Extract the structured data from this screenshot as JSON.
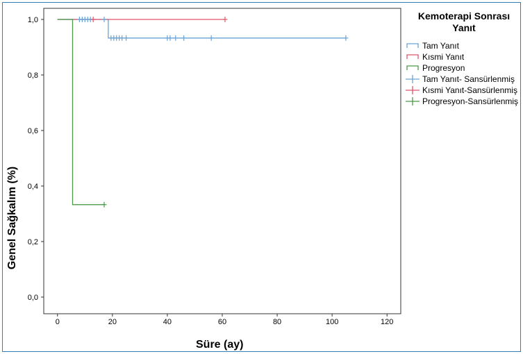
{
  "chart_data": {
    "type": "line",
    "subtype": "kaplan-meier",
    "xlabel": "Süre (ay)",
    "ylabel": "Genel Sağkalım (%)",
    "xlim": [
      -5,
      125
    ],
    "ylim": [
      0,
      1.0
    ],
    "xticks": [
      0,
      20,
      40,
      60,
      80,
      100,
      120
    ],
    "yticks": [
      0.0,
      0.2,
      0.4,
      0.6,
      0.8,
      1.0
    ],
    "xtick_labels": [
      "0",
      "20",
      "40",
      "60",
      "80",
      "100",
      "120"
    ],
    "ytick_labels": [
      "0,0",
      "0,2",
      "0,4",
      "0,6",
      "0,8",
      "1,0"
    ],
    "grid": false,
    "legend_position": "right",
    "legend_title": "Kemoterapi Sonrası Yanıt",
    "series": [
      {
        "name": "Tam Yanıt",
        "color": "#6aa3d5",
        "steps": [
          [
            0,
            1.0
          ],
          [
            18.5,
            1.0
          ],
          [
            18.5,
            0.933
          ],
          [
            105,
            0.933
          ]
        ],
        "censored": [
          [
            8,
            1.0
          ],
          [
            9,
            1.0
          ],
          [
            10,
            1.0
          ],
          [
            11,
            1.0
          ],
          [
            12,
            1.0
          ],
          [
            17,
            1.0
          ],
          [
            19.5,
            0.933
          ],
          [
            20.5,
            0.933
          ],
          [
            21.5,
            0.933
          ],
          [
            22.5,
            0.933
          ],
          [
            23.5,
            0.933
          ],
          [
            25,
            0.933
          ],
          [
            40,
            0.933
          ],
          [
            41,
            0.933
          ],
          [
            43,
            0.933
          ],
          [
            46,
            0.933
          ],
          [
            56,
            0.933
          ],
          [
            105,
            0.933
          ]
        ]
      },
      {
        "name": "Kısmi Yanıt",
        "color": "#e0566a",
        "steps": [
          [
            0,
            1.0
          ],
          [
            61,
            1.0
          ]
        ],
        "censored": [
          [
            13,
            1.0
          ],
          [
            61,
            1.0
          ]
        ]
      },
      {
        "name": "Progresyon",
        "color": "#4a9a48",
        "steps": [
          [
            0,
            1.0
          ],
          [
            5.5,
            1.0
          ],
          [
            5.5,
            0.333
          ],
          [
            17,
            0.333
          ]
        ],
        "censored": [
          [
            17,
            0.333
          ]
        ]
      }
    ],
    "legend": [
      {
        "label": "Tam Yanıt",
        "kind": "line",
        "color": "#6aa3d5"
      },
      {
        "label": "Kısmi Yanıt",
        "kind": "line",
        "color": "#e0566a"
      },
      {
        "label": "Progresyon",
        "kind": "line",
        "color": "#4a9a48"
      },
      {
        "label": "Tam Yanıt- Sansürlenmiş",
        "kind": "censor",
        "color": "#6aa3d5"
      },
      {
        "label": "Kısmi Yanıt-Sansürlenmiş",
        "kind": "censor",
        "color": "#e0566a"
      },
      {
        "label": "Progresyon-Sansürlenmiş",
        "kind": "censor",
        "color": "#4a9a48"
      }
    ]
  }
}
